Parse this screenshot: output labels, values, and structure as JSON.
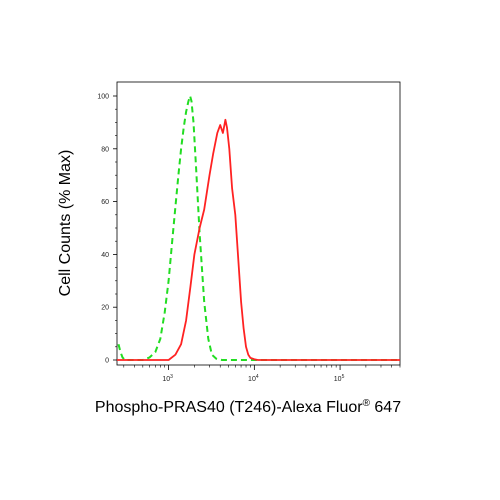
{
  "chart_data": {
    "type": "line",
    "title": "",
    "xlabel": "Phospho-PRAS40 (T246)-Alexa Fluor",
    "xlabel_superscript": "®",
    "xlabel_suffix": " 647",
    "ylabel": "Cell Counts (% Max)",
    "x_scale": "log",
    "xlim": [
      250,
      500000
    ],
    "ylim": [
      0,
      100
    ],
    "x_ticks": [
      {
        "base": "10",
        "exp": "3",
        "value": 1000
      },
      {
        "base": "10",
        "exp": "4",
        "value": 10000
      },
      {
        "base": "10",
        "exp": "5",
        "value": 100000
      }
    ],
    "y_ticks": [
      {
        "label": "0",
        "value": 0
      },
      {
        "label": "20",
        "value": 20
      },
      {
        "label": "40",
        "value": 40
      },
      {
        "label": "60",
        "value": 60
      },
      {
        "label": "80",
        "value": 80
      },
      {
        "label": "100",
        "value": 100
      }
    ],
    "series": [
      {
        "color": "#22dd22",
        "style": "dashed",
        "x": [
          260,
          275,
          290,
          310,
          400,
          500,
          600,
          700,
          800,
          900,
          1000,
          1100,
          1200,
          1300,
          1400,
          1500,
          1600,
          1700,
          1780,
          1850,
          1950,
          2100,
          2300,
          2600,
          2900,
          3200,
          3600,
          4200,
          500000
        ],
        "y": [
          6,
          3,
          1,
          0,
          0,
          0,
          1,
          3,
          8,
          18,
          30,
          45,
          58,
          70,
          80,
          88,
          94,
          98,
          100,
          98,
          90,
          72,
          48,
          22,
          8,
          2,
          0.5,
          0,
          0
        ]
      },
      {
        "color": "#ff2222",
        "style": "solid",
        "x": [
          250,
          1000,
          1200,
          1400,
          1600,
          1800,
          2000,
          2300,
          2600,
          3000,
          3300,
          3700,
          4000,
          4300,
          4600,
          4800,
          5100,
          5500,
          6000,
          6500,
          7000,
          7500,
          8000,
          8500,
          9000,
          10000,
          11000,
          13000,
          500000
        ],
        "y": [
          0,
          0,
          2,
          6,
          15,
          28,
          40,
          50,
          57,
          70,
          78,
          86,
          89,
          86,
          91,
          88,
          80,
          65,
          55,
          38,
          22,
          12,
          5,
          2,
          0.8,
          0.3,
          0,
          0,
          0
        ]
      }
    ]
  }
}
